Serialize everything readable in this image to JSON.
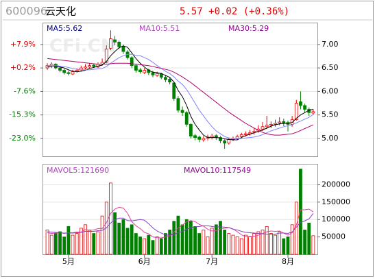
{
  "header": {
    "symbol": "600096",
    "name": "云天化",
    "quote": "5.57 +0.02 (+0.36%)"
  },
  "watermark": "CFi.CN",
  "chart_data": [
    {
      "type": "candlestick",
      "up_color": "#e00000",
      "down_color": "#008000",
      "open": [
        6.5,
        6.54,
        6.58,
        6.5,
        6.45,
        6.4,
        6.37,
        6.42,
        6.46,
        6.5,
        6.52,
        6.56,
        6.52,
        6.58,
        6.62,
        6.92,
        7.1,
        7.05,
        6.96,
        6.84,
        6.72,
        6.55,
        6.46,
        6.4,
        6.46,
        6.4,
        6.34,
        6.38,
        6.3,
        6.26,
        6.18,
        5.85,
        5.6,
        5.55,
        5.3,
        5.06,
        5.03,
        4.97,
        5.0,
        5.02,
        5.06,
        5.02,
        4.95,
        4.9,
        4.98,
        5.0,
        5.04,
        5.08,
        5.1,
        5.13,
        5.15,
        5.2,
        5.25,
        5.29,
        5.3,
        5.33,
        5.36,
        5.34,
        5.3,
        5.4,
        5.78,
        5.7,
        5.62,
        5.54
      ],
      "high": [
        6.6,
        6.62,
        6.6,
        6.53,
        6.48,
        6.44,
        6.46,
        6.49,
        6.55,
        6.58,
        6.6,
        6.59,
        6.62,
        6.7,
        6.98,
        7.3,
        7.18,
        7.08,
        7.0,
        6.88,
        6.75,
        6.58,
        6.5,
        6.5,
        6.48,
        6.44,
        6.42,
        6.4,
        6.35,
        6.3,
        6.2,
        5.9,
        5.68,
        5.58,
        5.32,
        5.1,
        5.06,
        5.05,
        5.08,
        5.1,
        5.09,
        5.05,
        4.98,
        5.02,
        5.04,
        5.08,
        5.12,
        5.15,
        5.18,
        5.22,
        5.28,
        5.35,
        5.48,
        5.36,
        5.4,
        5.45,
        5.42,
        5.38,
        5.48,
        5.82,
        6.0,
        5.74,
        5.66,
        5.62
      ],
      "low": [
        6.46,
        6.5,
        6.47,
        6.41,
        6.36,
        6.34,
        6.35,
        6.4,
        6.43,
        6.47,
        6.49,
        6.5,
        6.5,
        6.55,
        6.6,
        6.88,
        6.98,
        6.9,
        6.8,
        6.68,
        6.5,
        6.4,
        6.38,
        6.37,
        6.35,
        6.3,
        6.31,
        6.26,
        6.2,
        6.15,
        5.8,
        5.55,
        5.48,
        5.25,
        5.0,
        4.96,
        4.92,
        4.93,
        4.96,
        4.98,
        4.97,
        4.9,
        4.78,
        4.87,
        4.94,
        4.97,
        5.0,
        5.04,
        5.06,
        5.08,
        5.12,
        5.16,
        5.2,
        5.22,
        5.25,
        5.28,
        5.26,
        5.15,
        5.25,
        5.38,
        5.62,
        5.55,
        5.48,
        5.5
      ],
      "close": [
        6.55,
        6.58,
        6.5,
        6.45,
        6.4,
        6.38,
        6.42,
        6.45,
        6.5,
        6.52,
        6.55,
        6.53,
        6.58,
        6.62,
        6.9,
        7.12,
        7.05,
        6.95,
        6.85,
        6.72,
        6.55,
        6.45,
        6.42,
        6.45,
        6.4,
        6.35,
        6.38,
        6.3,
        6.25,
        6.2,
        5.85,
        5.6,
        5.55,
        5.3,
        5.05,
        5.02,
        4.98,
        5.0,
        5.03,
        5.05,
        5.02,
        4.95,
        4.9,
        4.98,
        5.0,
        5.04,
        5.08,
        5.1,
        5.12,
        5.15,
        5.2,
        5.25,
        5.28,
        5.3,
        5.32,
        5.35,
        5.33,
        5.3,
        5.4,
        5.75,
        5.7,
        5.62,
        5.55,
        5.57
      ],
      "series": [
        {
          "name": "MA5:5.62",
          "color": "#000000",
          "label_color": "#000080",
          "values": [
            6.52,
            6.54,
            6.54,
            6.52,
            6.5,
            6.46,
            6.43,
            6.42,
            6.43,
            6.45,
            6.49,
            6.51,
            6.54,
            6.56,
            6.64,
            6.76,
            6.85,
            6.93,
            6.97,
            6.94,
            6.82,
            6.7,
            6.6,
            6.52,
            6.45,
            6.41,
            6.4,
            6.38,
            6.34,
            6.3,
            6.2,
            6.02,
            5.89,
            5.7,
            5.47,
            5.3,
            5.18,
            5.07,
            5.02,
            5.02,
            5.02,
            5.01,
            4.99,
            4.98,
            4.97,
            4.97,
            5.02,
            5.06,
            5.09,
            5.12,
            5.15,
            5.18,
            5.22,
            5.26,
            5.29,
            5.31,
            5.32,
            5.32,
            5.34,
            5.43,
            5.5,
            5.55,
            5.6,
            5.62
          ]
        },
        {
          "name": "MA10:5.51",
          "color": "#8080ff",
          "label_color": "#b040c0",
          "values": [
            6.55,
            6.55,
            6.55,
            6.54,
            6.53,
            6.51,
            6.49,
            6.47,
            6.46,
            6.46,
            6.46,
            6.47,
            6.48,
            6.49,
            6.53,
            6.6,
            6.66,
            6.72,
            6.76,
            6.79,
            6.79,
            6.77,
            6.76,
            6.72,
            6.68,
            6.62,
            6.55,
            6.49,
            6.43,
            6.38,
            6.31,
            6.22,
            6.15,
            6.04,
            5.9,
            5.75,
            5.6,
            5.48,
            5.36,
            5.25,
            5.16,
            5.1,
            5.04,
            5.01,
            5.0,
            4.99,
            5.0,
            5.01,
            5.02,
            5.03,
            5.05,
            5.08,
            5.12,
            5.16,
            5.19,
            5.22,
            5.25,
            5.27,
            5.29,
            5.33,
            5.37,
            5.41,
            5.45,
            5.51
          ]
        },
        {
          "name": "MA30:5.29",
          "color": "#b0006a",
          "label_color": "#900090",
          "values": [
            6.7,
            6.69,
            6.68,
            6.67,
            6.66,
            6.65,
            6.64,
            6.63,
            6.62,
            6.61,
            6.6,
            6.59,
            6.58,
            6.58,
            6.58,
            6.59,
            6.6,
            6.6,
            6.6,
            6.6,
            6.59,
            6.58,
            6.57,
            6.56,
            6.55,
            6.53,
            6.51,
            6.49,
            6.47,
            6.45,
            6.41,
            6.36,
            6.31,
            6.25,
            6.19,
            6.12,
            6.05,
            5.98,
            5.91,
            5.84,
            5.77,
            5.7,
            5.63,
            5.56,
            5.5,
            5.44,
            5.38,
            5.32,
            5.27,
            5.22,
            5.17,
            5.13,
            5.1,
            5.08,
            5.07,
            5.07,
            5.08,
            5.09,
            5.1,
            5.13,
            5.17,
            5.21,
            5.25,
            5.29
          ]
        }
      ],
      "ylim": [
        4.62,
        7.45
      ],
      "yticks": [
        {
          "value": 7.0,
          "label": "7.00"
        },
        {
          "value": 6.5,
          "label": "6.50"
        },
        {
          "value": 6.0,
          "label": "6.00"
        },
        {
          "value": 5.5,
          "label": "5.50"
        },
        {
          "value": 5.0,
          "label": "5.00"
        }
      ],
      "yticks_left": [
        {
          "value": 7.0,
          "label": "+7.9%"
        },
        {
          "value": 6.5,
          "label": "+0.2%"
        },
        {
          "value": 6.0,
          "label": "-7.6%"
        },
        {
          "value": 5.5,
          "label": "-15.3%"
        },
        {
          "value": 5.0,
          "label": "-23.0%"
        }
      ],
      "grid": true
    },
    {
      "type": "volume",
      "categories": [
        null,
        null,
        null,
        null,
        null,
        "5月",
        null,
        null,
        null,
        null,
        null,
        null,
        null,
        null,
        null,
        null,
        null,
        null,
        null,
        null,
        null,
        null,
        null,
        "6月",
        null,
        null,
        null,
        null,
        null,
        null,
        null,
        null,
        null,
        null,
        null,
        null,
        null,
        null,
        null,
        "7月",
        null,
        null,
        null,
        null,
        null,
        null,
        null,
        null,
        null,
        null,
        null,
        null,
        null,
        null,
        null,
        null,
        null,
        "8月",
        null,
        null,
        null,
        null,
        null,
        null
      ],
      "values": [
        70000,
        55000,
        60000,
        65000,
        50000,
        80000,
        55000,
        60000,
        75000,
        85000,
        70000,
        60000,
        65000,
        110000,
        150000,
        205000,
        120000,
        90000,
        100000,
        75000,
        85000,
        60000,
        50000,
        45000,
        55000,
        40000,
        50000,
        45000,
        60000,
        70000,
        95000,
        110000,
        85000,
        100000,
        95000,
        80000,
        60000,
        70000,
        50000,
        75000,
        85000,
        95000,
        70000,
        60000,
        55000,
        50000,
        45000,
        55000,
        50000,
        60000,
        65000,
        70000,
        80000,
        60000,
        55000,
        65000,
        45000,
        50000,
        85000,
        150000,
        245000,
        70000,
        90000,
        53450
      ],
      "series": [
        {
          "name": "MAVOL5:121690",
          "color": "#e040a0",
          "label_color": "#b040c0",
          "values": [
            62000,
            60000,
            61000,
            62000,
            60000,
            62000,
            62000,
            64000,
            64000,
            71000,
            69000,
            70000,
            74000,
            74000,
            91000,
            118000,
            130000,
            135000,
            133000,
            118000,
            94000,
            82000,
            74000,
            63000,
            59000,
            50000,
            48000,
            47000,
            50000,
            53000,
            64000,
            76000,
            84000,
            94000,
            97000,
            94000,
            86000,
            81000,
            72000,
            67000,
            68000,
            73000,
            75000,
            77000,
            73000,
            65000,
            56000,
            51000,
            51000,
            52000,
            55000,
            60000,
            65000,
            67000,
            66000,
            67000,
            61000,
            55000,
            62000,
            84000,
            128000,
            128000,
            130000,
            121690
          ]
        },
        {
          "name": "MAVOL10:117549",
          "color": "#8040c0",
          "label_color": "#900090",
          "values": [
            65000,
            64000,
            63000,
            62000,
            61000,
            61000,
            61000,
            62000,
            63000,
            66000,
            66000,
            66000,
            68000,
            69000,
            76000,
            90000,
            100000,
            104000,
            104000,
            97000,
            96000,
            98000,
            100000,
            98000,
            88000,
            76000,
            67000,
            61000,
            56000,
            55000,
            57000,
            62000,
            66000,
            72000,
            76000,
            79000,
            80000,
            82000,
            82000,
            80000,
            78000,
            79000,
            78000,
            77000,
            72000,
            70000,
            66000,
            63000,
            62000,
            61000,
            60000,
            59000,
            58000,
            58000,
            58000,
            61000,
            61000,
            60000,
            64000,
            78000,
            92000,
            96000,
            102000,
            117549
          ]
        }
      ],
      "ylim": [
        0,
        258000
      ],
      "yticks": [
        200000,
        150000,
        100000,
        50000
      ],
      "grid": true
    }
  ]
}
